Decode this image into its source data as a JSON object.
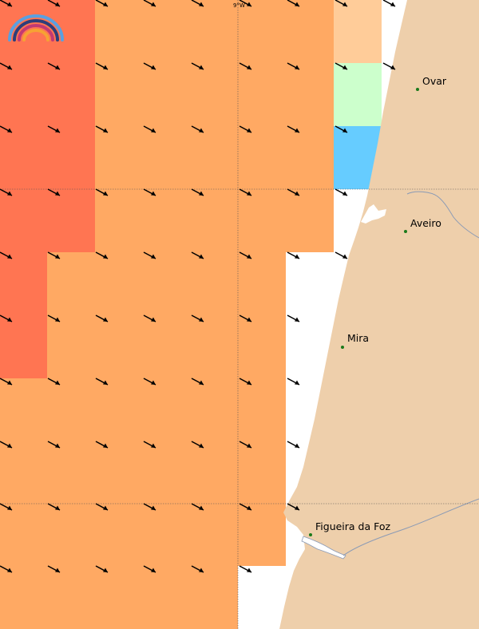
{
  "map": {
    "meridian_label": "9°W",
    "colors": {
      "land": "#eecfab",
      "sea": "#ffffff",
      "river": "#8a9ab5",
      "grid": "#555555",
      "city_dot": "#1a7a1a",
      "arrow": "#000000",
      "cells": {
        "red": "#ff7552",
        "orange": "#ffa963",
        "light_orange": "#ffcc99",
        "light_green": "#ccffcc",
        "blue": "#66ccff"
      }
    },
    "cities": [
      {
        "name": "Ovar"
      },
      {
        "name": "Aveiro"
      },
      {
        "name": "Mira"
      },
      {
        "name": "Figueira da Foz"
      }
    ],
    "logo": "rainbow-logo",
    "wind_arrows": "wind-direction-arrows"
  }
}
